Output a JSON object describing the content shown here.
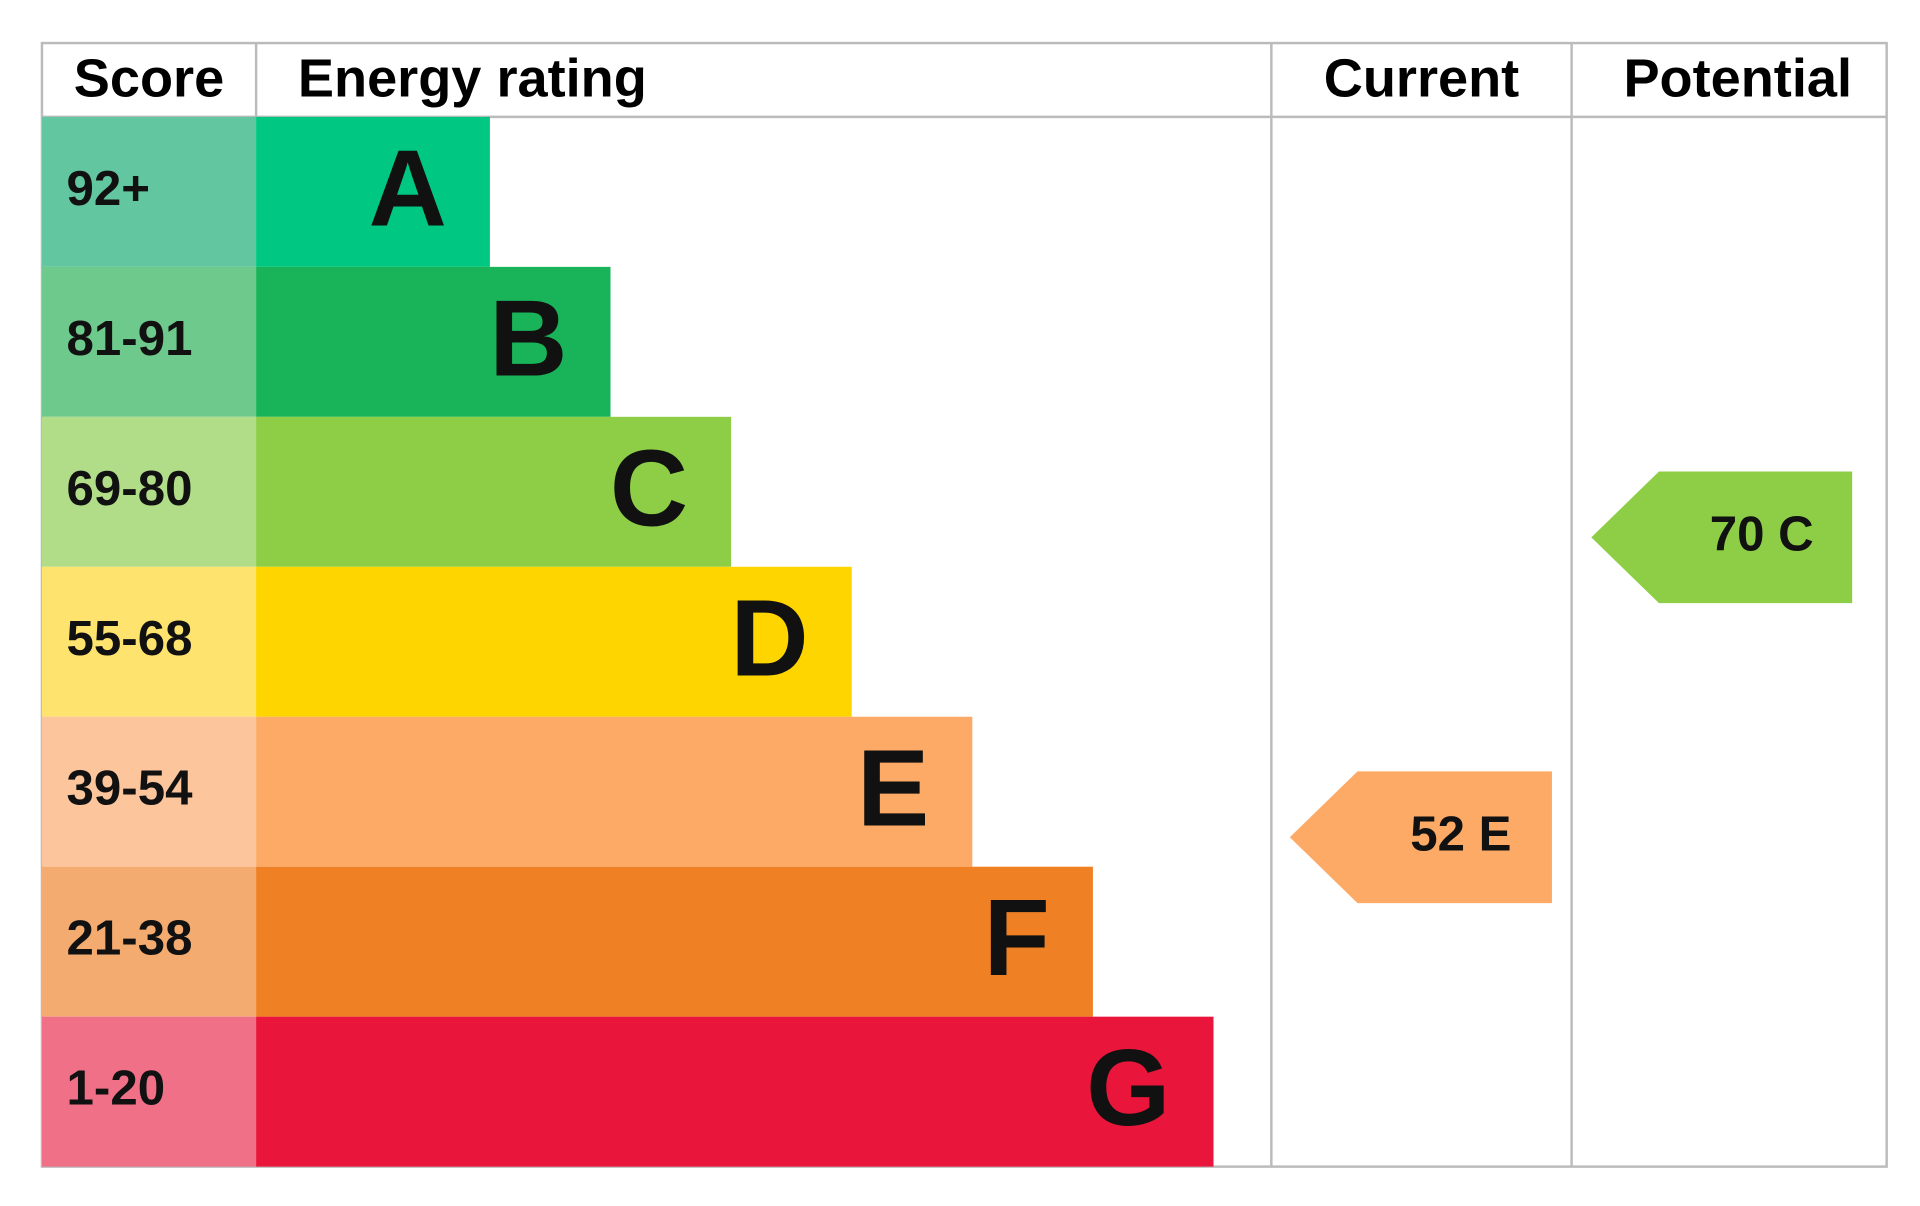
{
  "header": {
    "score": "Score",
    "rating": "Energy rating",
    "current": "Current",
    "potential": "Potential"
  },
  "bands": [
    {
      "score": "92+",
      "letter": "A",
      "color": "#00c781",
      "score_color": "#62c6a0"
    },
    {
      "score": "81-91",
      "letter": "B",
      "color": "#19b459",
      "score_color": "#6dc98c"
    },
    {
      "score": "69-80",
      "letter": "C",
      "color": "#8dce46",
      "score_color": "#b1dd88"
    },
    {
      "score": "55-68",
      "letter": "D",
      "color": "#ffd500",
      "score_color": "#fee36e"
    },
    {
      "score": "39-54",
      "letter": "E",
      "color": "#fcaa65",
      "score_color": "#fdc59c"
    },
    {
      "score": "21-38",
      "letter": "F",
      "color": "#ef8023",
      "score_color": "#f3ab70"
    },
    {
      "score": "1-20",
      "letter": "G",
      "color": "#e9153b",
      "score_color": "#ef7087"
    }
  ],
  "current": {
    "value": 52,
    "rating": "E"
  },
  "potential": {
    "value": 70,
    "rating": "C"
  }
}
